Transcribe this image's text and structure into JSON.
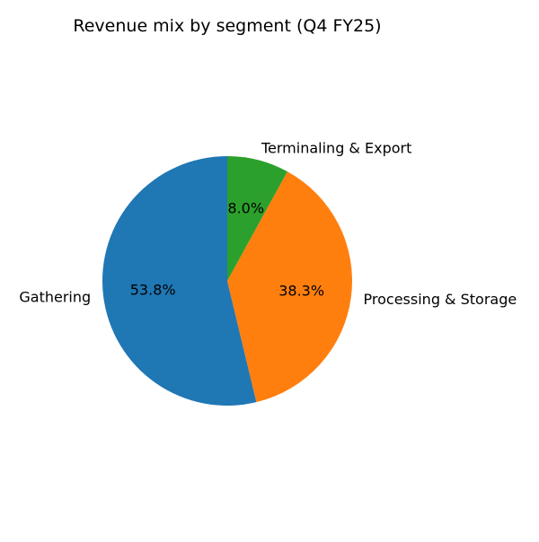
{
  "chart_data": {
    "type": "pie",
    "title": "Revenue mix by segment (Q4 FY25)",
    "start_angle_deg": 90,
    "direction": "counterclockwise",
    "slices": [
      {
        "label": "Gathering",
        "value": 53.8,
        "pct_label": "53.8%",
        "color": "#1f77b4"
      },
      {
        "label": "Processing & Storage",
        "value": 38.3,
        "pct_label": "38.3%",
        "color": "#ff7f0e"
      },
      {
        "label": "Terminaling & Export",
        "value": 8.0,
        "pct_label": "8.0%",
        "color": "#2ca02c"
      }
    ]
  }
}
